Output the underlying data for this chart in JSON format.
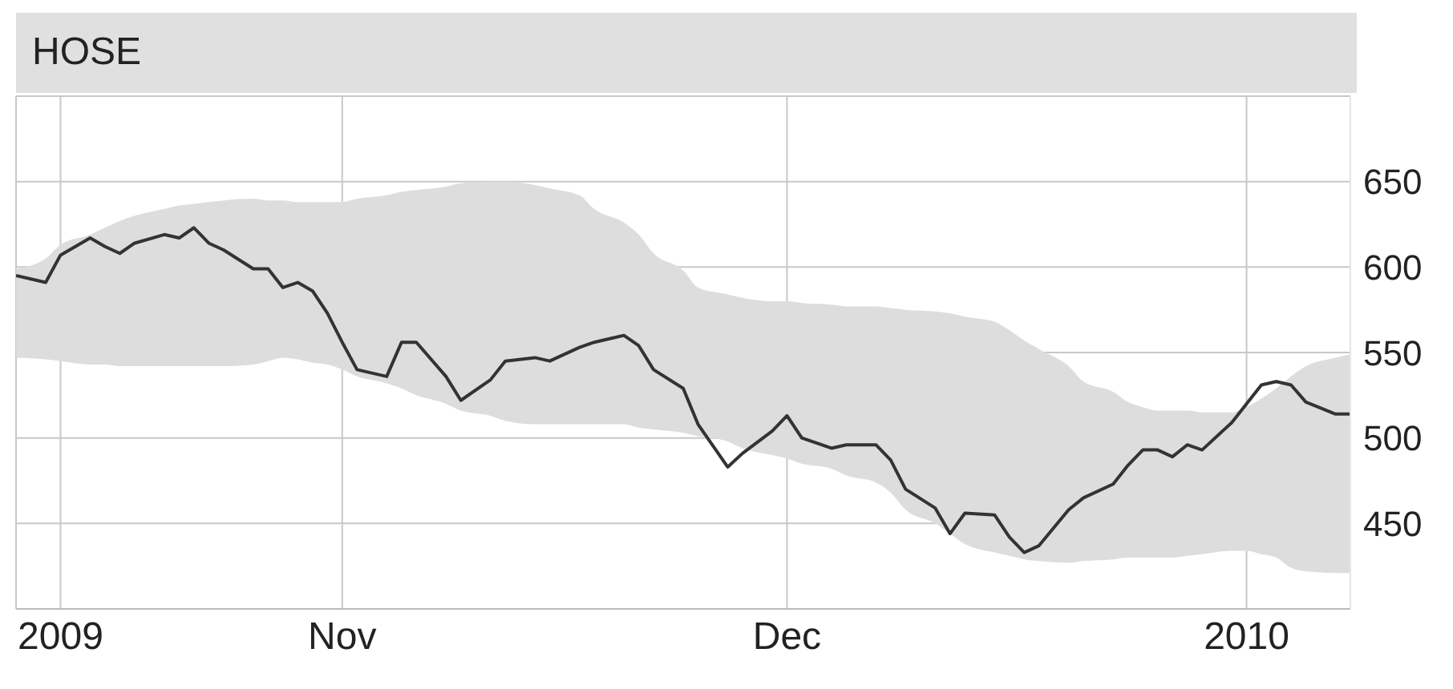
{
  "chart_data": {
    "type": "line",
    "title": "HOSE",
    "x": [
      "2009-10-10",
      "2009-10-12",
      "2009-10-13",
      "2009-10-15",
      "2009-10-16",
      "2009-10-17",
      "2009-10-18",
      "2009-10-20",
      "2009-10-21",
      "2009-10-22",
      "2009-10-23",
      "2009-10-24",
      "2009-10-26",
      "2009-10-27",
      "2009-10-28",
      "2009-10-29",
      "2009-10-30",
      "2009-10-31",
      "2009-11-01",
      "2009-11-02",
      "2009-11-04",
      "2009-11-05",
      "2009-11-06",
      "2009-11-08",
      "2009-11-09",
      "2009-11-11",
      "2009-11-12",
      "2009-11-14",
      "2009-11-15",
      "2009-11-17",
      "2009-11-18",
      "2009-11-20",
      "2009-11-21",
      "2009-11-22",
      "2009-11-24",
      "2009-11-25",
      "2009-11-27",
      "2009-11-28",
      "2009-11-30",
      "2009-12-01",
      "2009-12-02",
      "2009-12-04",
      "2009-12-05",
      "2009-12-07",
      "2009-12-08",
      "2009-12-09",
      "2009-12-11",
      "2009-12-12",
      "2009-12-13",
      "2009-12-15",
      "2009-12-16",
      "2009-12-17",
      "2009-12-18",
      "2009-12-20",
      "2009-12-21",
      "2009-12-23",
      "2009-12-24",
      "2009-12-25",
      "2009-12-26",
      "2009-12-27",
      "2009-12-28",
      "2009-12-29",
      "2009-12-31",
      "2010-01-01",
      "2010-01-02",
      "2010-01-03",
      "2010-01-04",
      "2010-01-05",
      "2010-01-07",
      "2010-01-08"
    ],
    "series": [
      {
        "color": "#333333",
        "values": [
          595,
          591,
          607,
          617,
          612,
          608,
          614,
          619,
          617,
          623,
          614,
          610,
          599,
          599,
          588,
          591,
          586,
          573,
          556,
          540,
          536,
          556,
          556,
          536,
          522,
          534,
          545,
          547,
          545,
          553,
          556,
          560,
          554,
          540,
          529,
          508,
          483,
          491,
          504,
          513,
          500,
          494,
          496,
          496,
          487,
          470,
          459,
          444,
          456,
          455,
          442,
          433,
          437,
          458,
          465,
          473,
          484,
          493,
          493,
          489,
          496,
          493,
          509,
          520,
          531,
          533,
          531,
          521,
          514,
          514
        ],
        "upper": [
          599,
          605,
          613,
          619,
          623,
          627,
          630,
          634,
          636,
          637,
          638,
          639,
          640,
          639,
          639,
          638,
          638,
          638,
          638,
          640,
          642,
          644,
          645,
          647,
          649,
          650,
          650,
          648,
          646,
          642,
          634,
          626,
          619,
          608,
          598,
          588,
          584,
          582,
          580,
          580,
          579,
          578,
          577,
          577,
          576,
          575,
          574,
          573,
          571,
          568,
          563,
          557,
          552,
          542,
          533,
          527,
          521,
          518,
          516,
          516,
          516,
          515,
          515,
          518,
          523,
          529,
          536,
          542,
          547,
          549
        ],
        "lower": [
          547,
          546,
          545,
          543,
          543,
          542,
          542,
          542,
          542,
          542,
          542,
          542,
          543,
          545,
          547,
          546,
          544,
          543,
          540,
          536,
          532,
          529,
          525,
          520,
          516,
          513,
          510,
          508,
          508,
          508,
          508,
          508,
          506,
          505,
          503,
          501,
          498,
          494,
          490,
          488,
          485,
          482,
          478,
          474,
          468,
          458,
          450,
          444,
          438,
          433,
          431,
          429,
          428,
          427,
          428,
          429,
          430,
          430,
          430,
          430,
          431,
          432,
          434,
          434,
          432,
          430,
          424,
          422,
          421,
          421
        ]
      }
    ],
    "xlim": [
      "2009-10-10",
      "2010-01-08"
    ],
    "xticks": [
      {
        "value": "2009-10-13",
        "label": "2009"
      },
      {
        "value": "2009-11-01",
        "label": "Nov"
      },
      {
        "value": "2009-12-01",
        "label": "Dec"
      },
      {
        "value": "2010-01-01",
        "label": "2010"
      }
    ],
    "ylim": [
      400,
      700
    ],
    "yticks": [
      450,
      500,
      550,
      600,
      650
    ],
    "grid": true,
    "line_style": "solid",
    "marker": "none"
  }
}
